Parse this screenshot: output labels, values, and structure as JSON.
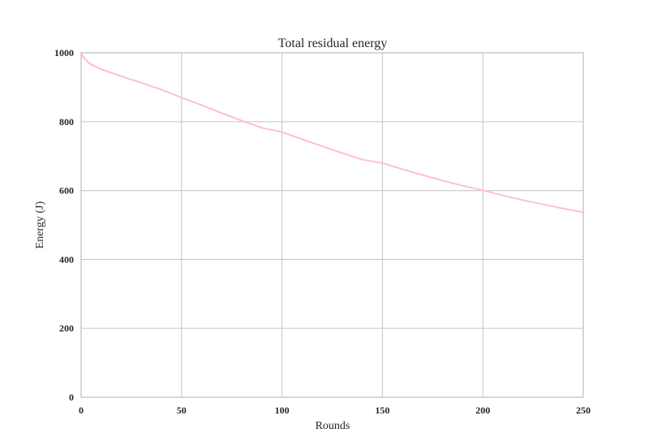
{
  "colors": {
    "background": "#ffffff",
    "grid": "#cccccc",
    "axes_frame": "#cccccc",
    "text": "#262626",
    "series": "#ffc0cb"
  },
  "chart_data": {
    "type": "line",
    "title": "Total residual energy",
    "xlabel": "Rounds",
    "ylabel": "Energy (J)",
    "xlim": [
      0,
      250
    ],
    "ylim": [
      0,
      1000
    ],
    "xticks": [
      0,
      50,
      100,
      150,
      200,
      250
    ],
    "yticks": [
      0,
      200,
      400,
      600,
      800,
      1000
    ],
    "grid": true,
    "legend": false,
    "series": [
      {
        "color": "#ffc0cb",
        "x": [
          0,
          1,
          2,
          3,
          5,
          8,
          10,
          15,
          20,
          25,
          30,
          40,
          50,
          60,
          70,
          80,
          90,
          100,
          110,
          120,
          130,
          140,
          150,
          160,
          170,
          180,
          190,
          200,
          210,
          220,
          230,
          240,
          250
        ],
        "y": [
          1000,
          988,
          982,
          975,
          966,
          958,
          952,
          942,
          932,
          922,
          913,
          893,
          870,
          848,
          825,
          803,
          782,
          770,
          749,
          729,
          709,
          690,
          680,
          662,
          645,
          629,
          614,
          601,
          586,
          572,
          560,
          548,
          537
        ]
      }
    ]
  }
}
